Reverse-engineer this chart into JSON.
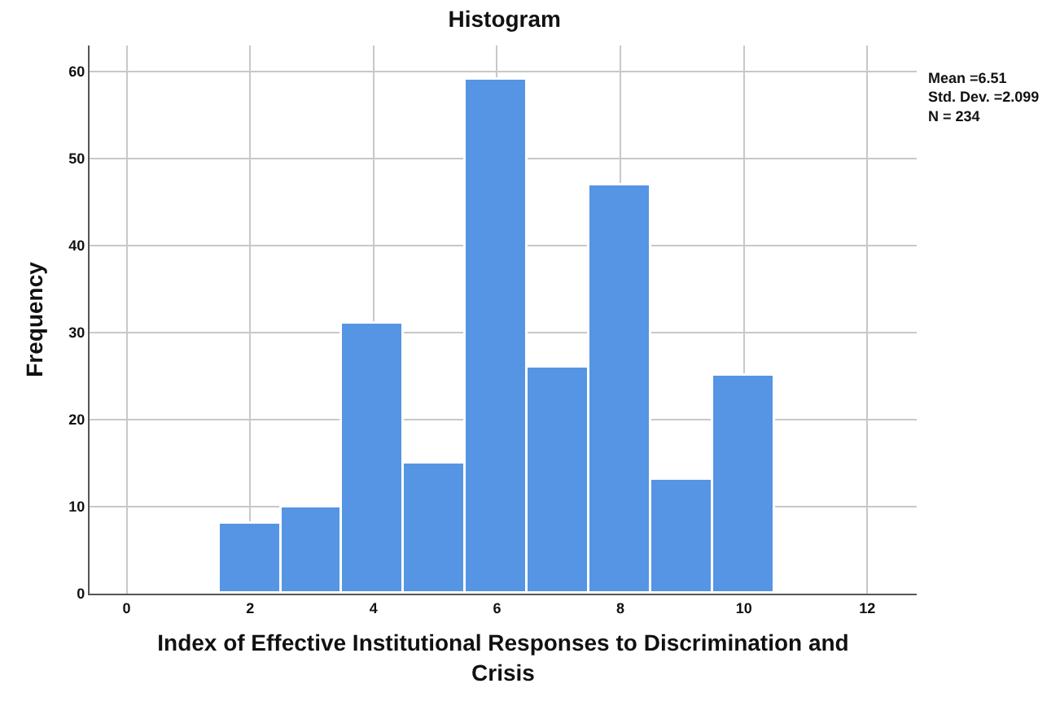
{
  "chart_data": {
    "type": "histogram",
    "title": "Histogram",
    "xlabel": "Index of Effective Institutional Responses to Discrimination and\nCrisis",
    "ylabel": "Frequency",
    "bins": [
      1.5,
      2.5,
      3.5,
      4.5,
      5.5,
      6.5,
      7.5,
      8.5,
      9.5,
      10.5
    ],
    "values": [
      8,
      10,
      31,
      15,
      59,
      26,
      47,
      13,
      25
    ],
    "color": "#5595e3",
    "xlim": [
      -0.6,
      12.8
    ],
    "xticks": [
      0,
      2,
      4,
      6,
      8,
      10,
      12
    ],
    "ylim": [
      0,
      63
    ],
    "yticks": [
      0,
      10,
      20,
      30,
      40,
      50,
      60
    ],
    "grid": true,
    "annotations": [
      "Mean =6.51\nStd. Dev. =2.099\nN = 234"
    ]
  }
}
